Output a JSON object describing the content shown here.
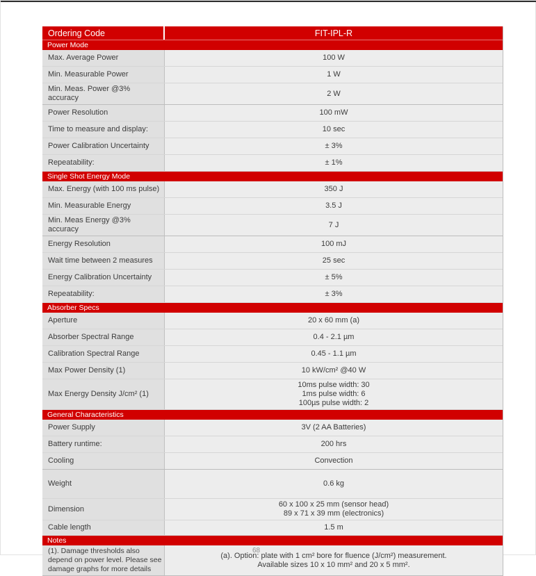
{
  "page": {
    "page_number": "68"
  },
  "table": {
    "ordering_code_label": "Ordering Code",
    "ordering_code_value": "FIT-IPL-R",
    "sections": [
      {
        "title": "Power Mode",
        "rows": [
          {
            "label": "Max. Average Power",
            "values": [
              "100 W"
            ]
          },
          {
            "label": "Min. Measurable Power",
            "values": [
              "1 W"
            ]
          },
          {
            "label": "Min. Meas. Power @3% accuracy",
            "values": [
              "2 W"
            ]
          },
          {
            "label": "Power Resolution",
            "values": [
              "100 mW"
            ]
          },
          {
            "label": "Time to measure and display:",
            "values": [
              "10 sec"
            ]
          },
          {
            "label": "Power Calibration Uncertainty",
            "values": [
              "± 3%"
            ]
          },
          {
            "label": "Repeatability:",
            "values": [
              "± 1%"
            ]
          }
        ]
      },
      {
        "title": "Single Shot Energy Mode",
        "rows": [
          {
            "label": "Max. Energy (with 100 ms pulse)",
            "values": [
              "350 J"
            ]
          },
          {
            "label": "Min. Measurable Energy",
            "values": [
              "3.5 J"
            ]
          },
          {
            "label": "Min. Meas Energy @3% accuracy",
            "values": [
              "7 J"
            ]
          },
          {
            "label": "Energy Resolution",
            "values": [
              "100 mJ"
            ]
          },
          {
            "label": "Wait time between 2 measures",
            "values": [
              "25 sec"
            ]
          },
          {
            "label": "Energy Calibration Uncertainty",
            "values": [
              "± 5%"
            ]
          },
          {
            "label": "Repeatability:",
            "values": [
              "± 3%"
            ]
          }
        ]
      },
      {
        "title": "Absorber Specs",
        "rows": [
          {
            "label": "Aperture",
            "values": [
              "20 x 60 mm (a)"
            ]
          },
          {
            "label": "Absorber Spectral Range",
            "values": [
              "0.4 - 2.1 µm"
            ]
          },
          {
            "label": "Calibration Spectral Range",
            "values": [
              "0.45 - 1.1 µm"
            ]
          },
          {
            "label": "Max Power Density (1)",
            "values": [
              "10 kW/cm² @40 W"
            ]
          },
          {
            "label": "Max Energy Density J/cm² (1)",
            "values": [
              "10ms pulse width: 30",
              "1ms pulse width: 6",
              "100µs pulse width: 2"
            ]
          }
        ]
      },
      {
        "title": "General Characteristics",
        "rows": [
          {
            "label": "Power Supply",
            "values": [
              "3V (2 AA Batteries)"
            ]
          },
          {
            "label": "Battery runtime:",
            "values": [
              "200 hrs"
            ]
          },
          {
            "label": "Cooling",
            "values": [
              "Convection"
            ]
          },
          {
            "label": "Weight",
            "values": [
              "0.6 kg"
            ]
          },
          {
            "label": "Dimension",
            "values": [
              "60 x 100 x 25 mm (sensor head)",
              "89 x 71 x 39 mm (electronics)"
            ]
          },
          {
            "label": "Cable length",
            "values": [
              "1.5 m"
            ]
          }
        ]
      },
      {
        "title": "Notes",
        "rows": [
          {
            "label": "(1). Damage thresholds also depend on power level. Please see damage graphs for more details",
            "values": [
              "(a). Option: plate with 1 cm² bore for fluence (J/cm²) measurement.",
              "Available sizes 10 x 10 mm² and 20 x 5 mm²."
            ]
          }
        ]
      }
    ]
  }
}
